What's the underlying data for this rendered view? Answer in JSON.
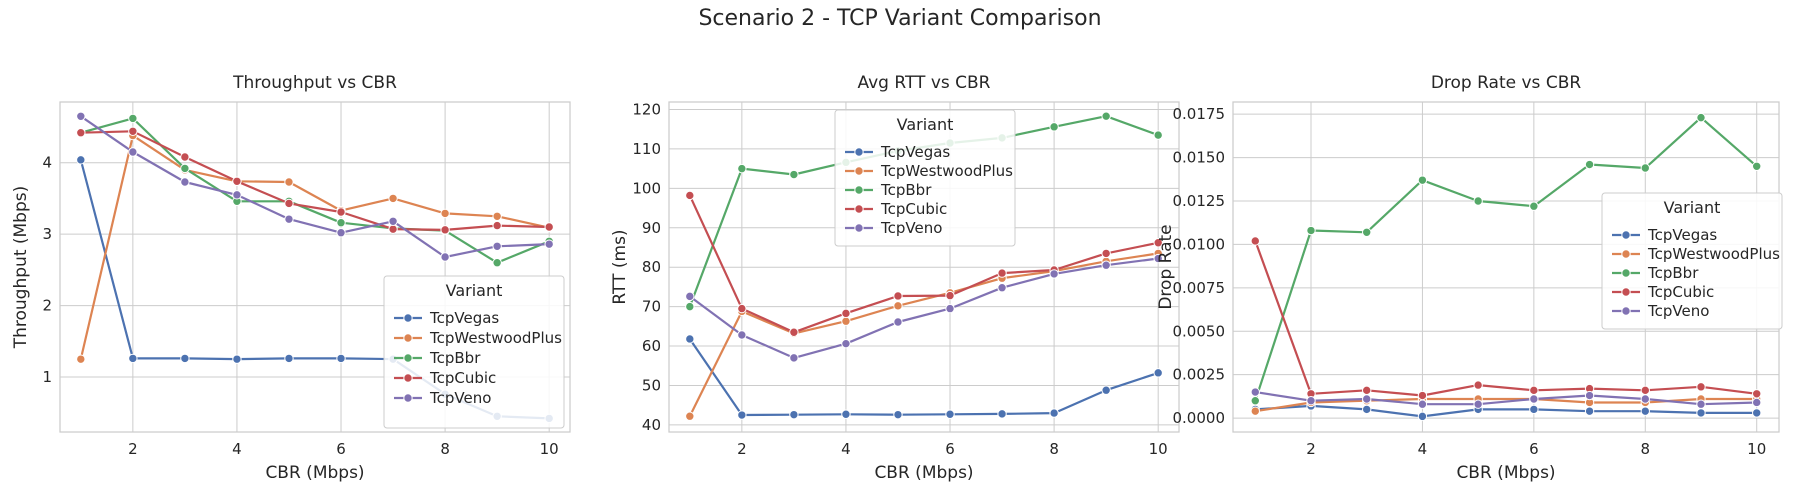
{
  "figure": {
    "title": "Scenario 2 - TCP Variant Comparison"
  },
  "colors": {
    "TcpVegas": "#4c72b0",
    "TcpWestwoodPlus": "#dd8452",
    "TcpBbr": "#55a868",
    "TcpCubic": "#c44e52",
    "TcpVeno": "#8172b3"
  },
  "chart_data": [
    {
      "type": "line",
      "title": "Throughput vs CBR",
      "xlabel": "CBR (Mbps)",
      "ylabel": "Throughput (Mbps)",
      "xlim": [
        0.6,
        10.4
      ],
      "ylim": [
        0.23,
        4.85
      ],
      "xticks": [
        2,
        4,
        6,
        8,
        10
      ],
      "yticks": [
        1,
        2,
        3,
        4
      ],
      "ytick_labels": [
        "1",
        "2",
        "3",
        "4"
      ],
      "grid": true,
      "legend": {
        "title": "Variant",
        "placement": "lower-right"
      },
      "x": [
        1,
        2,
        3,
        4,
        5,
        6,
        7,
        8,
        9,
        10
      ],
      "series": [
        {
          "name": "TcpVegas",
          "values": [
            4.04,
            1.26,
            1.26,
            1.25,
            1.26,
            1.26,
            1.25,
            0.76,
            0.45,
            0.42
          ]
        },
        {
          "name": "TcpWestwoodPlus",
          "values": [
            1.25,
            4.38,
            3.9,
            3.74,
            3.73,
            3.33,
            3.5,
            3.29,
            3.25,
            3.09
          ]
        },
        {
          "name": "TcpBbr",
          "values": [
            4.42,
            4.62,
            3.92,
            3.46,
            3.46,
            3.16,
            3.08,
            3.05,
            2.6,
            2.9
          ]
        },
        {
          "name": "TcpCubic",
          "values": [
            4.42,
            4.44,
            4.08,
            3.74,
            3.43,
            3.31,
            3.07,
            3.06,
            3.12,
            3.1
          ]
        },
        {
          "name": "TcpVeno",
          "values": [
            4.65,
            4.15,
            3.73,
            3.55,
            3.21,
            3.02,
            3.18,
            2.68,
            2.83,
            2.86
          ]
        }
      ]
    },
    {
      "type": "line",
      "title": "Avg RTT vs CBR",
      "xlabel": "CBR (Mbps)",
      "ylabel": "RTT (ms)",
      "xlim": [
        0.6,
        10.4
      ],
      "ylim": [
        38.2,
        121.9
      ],
      "xticks": [
        2,
        4,
        6,
        8,
        10
      ],
      "yticks": [
        40,
        50,
        60,
        70,
        80,
        90,
        100,
        110,
        120
      ],
      "ytick_labels": [
        "40",
        "50",
        "60",
        "70",
        "80",
        "90",
        "100",
        "110",
        "120"
      ],
      "grid": true,
      "legend": {
        "title": "Variant",
        "placement": "upper-center"
      },
      "x": [
        1,
        2,
        3,
        4,
        5,
        6,
        7,
        8,
        9,
        10
      ],
      "series": [
        {
          "name": "TcpVegas",
          "values": [
            61.8,
            42.5,
            42.6,
            42.7,
            42.6,
            42.7,
            42.8,
            43.0,
            48.8,
            53.2
          ]
        },
        {
          "name": "TcpWestwoodPlus",
          "values": [
            42.2,
            68.8,
            63.2,
            66.3,
            70.2,
            73.5,
            77.2,
            79.0,
            81.5,
            83.5
          ]
        },
        {
          "name": "TcpBbr",
          "values": [
            70.0,
            105.0,
            103.5,
            106.6,
            109.5,
            111.5,
            112.8,
            115.6,
            118.3,
            113.5
          ]
        },
        {
          "name": "TcpCubic",
          "values": [
            98.2,
            69.5,
            63.5,
            68.3,
            72.7,
            72.8,
            78.5,
            79.3,
            83.5,
            86.2
          ]
        },
        {
          "name": "TcpVeno",
          "values": [
            72.6,
            62.8,
            57.0,
            60.6,
            66.1,
            69.5,
            74.8,
            78.3,
            80.5,
            82.2
          ]
        }
      ]
    },
    {
      "type": "line",
      "title": "Drop Rate vs CBR",
      "xlabel": "CBR (Mbps)",
      "ylabel": "Drop Rate",
      "xlim": [
        0.6,
        10.4
      ],
      "ylim": [
        -0.0008,
        0.0182
      ],
      "xticks": [
        2,
        4,
        6,
        8,
        10
      ],
      "yticks": [
        0,
        0.0025,
        0.005,
        0.0075,
        0.01,
        0.0125,
        0.015,
        0.0175
      ],
      "ytick_labels": [
        "0.0000",
        "0.0025",
        "0.0050",
        "0.0075",
        "0.0100",
        "0.0125",
        "0.0150",
        "0.0175"
      ],
      "grid": true,
      "legend": {
        "title": "Variant",
        "placement": "center-right"
      },
      "x": [
        1,
        2,
        3,
        4,
        5,
        6,
        7,
        8,
        9,
        10
      ],
      "series": [
        {
          "name": "TcpVegas",
          "values": [
            0.0005,
            0.0007,
            0.0005,
            0.0001,
            0.0005,
            0.0005,
            0.0004,
            0.0004,
            0.0003,
            0.0003
          ]
        },
        {
          "name": "TcpWestwoodPlus",
          "values": [
            0.0004,
            0.0009,
            0.001,
            0.0011,
            0.0011,
            0.0011,
            0.0009,
            0.0009,
            0.0011,
            0.0011
          ]
        },
        {
          "name": "TcpBbr",
          "values": [
            0.001,
            0.0108,
            0.0107,
            0.0137,
            0.0125,
            0.0122,
            0.0146,
            0.0144,
            0.0173,
            0.0145
          ]
        },
        {
          "name": "TcpCubic",
          "values": [
            0.0102,
            0.0014,
            0.0016,
            0.0013,
            0.0019,
            0.0016,
            0.0017,
            0.0016,
            0.0018,
            0.0014
          ]
        },
        {
          "name": "TcpVeno",
          "values": [
            0.0015,
            0.001,
            0.0011,
            0.0008,
            0.0008,
            0.0011,
            0.0013,
            0.0011,
            0.0008,
            0.0009
          ]
        }
      ]
    }
  ]
}
